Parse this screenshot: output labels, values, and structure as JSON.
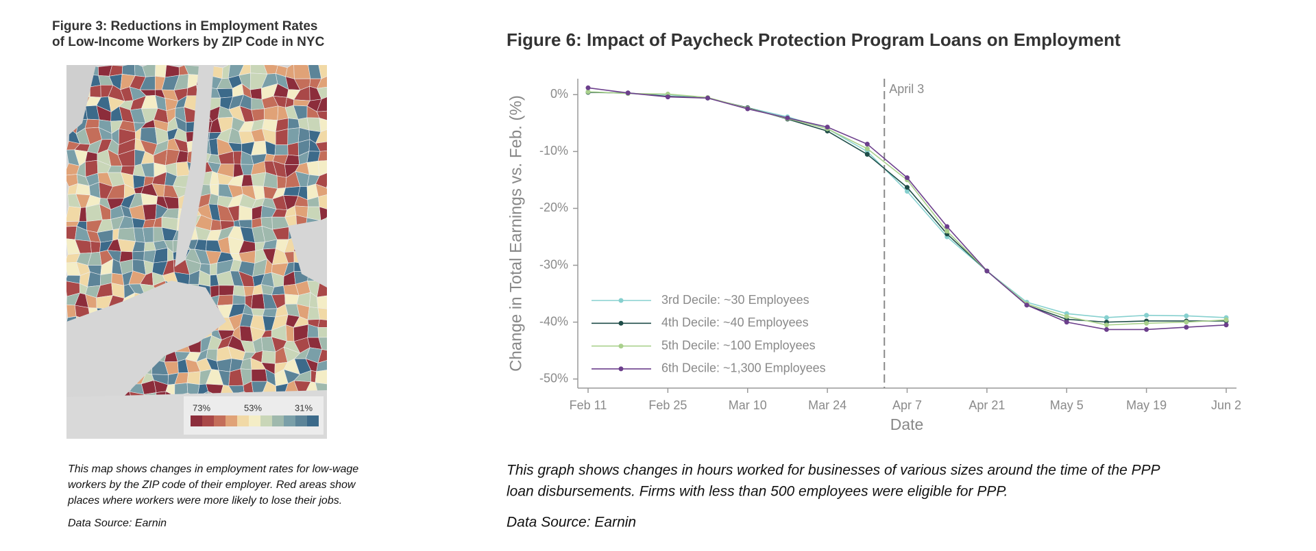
{
  "map_figure": {
    "title": [
      "Figure 3: Reductions in Employment Rates",
      "of Low-Income Workers by ZIP Code in NYC"
    ],
    "legend_labels": [
      "73%",
      "53%",
      "31%"
    ],
    "caption": [
      "This map shows changes in employment rates for low-wage",
      "workers by the ZIP code of their employer. Red areas show",
      "places where workers were more likely to lose their jobs."
    ],
    "source": "Data Source: Earnin"
  },
  "chart_data": {
    "type": "line",
    "title": "Figure 6: Impact of Paycheck Protection Program Loans on Employment",
    "x_label": "Date",
    "y_label": "Change in Total Earnings vs. Feb. (%)",
    "categories": [
      "Feb 11",
      null,
      "Feb 25",
      null,
      "Mar 10",
      null,
      "Mar 24",
      null,
      "Apr 7",
      null,
      "Apr 21",
      null,
      "May 5",
      null,
      "May 19",
      null,
      "Jun 2"
    ],
    "series": [
      {
        "name": "3rd Decile: ~30 Employees",
        "color": "#86d0cf",
        "values": [
          0.5,
          0.2,
          0.0,
          -0.6,
          -2.3,
          -3.9,
          -6.0,
          -10.0,
          -17.0,
          -25.0,
          -31.0,
          -36.5,
          -38.5,
          -39.2,
          -38.8,
          -38.9,
          -39.2
        ]
      },
      {
        "name": "4th Decile: ~40 Employees",
        "color": "#1f4d48",
        "values": [
          0.4,
          0.3,
          -0.3,
          -0.6,
          -2.3,
          -4.3,
          -6.4,
          -10.5,
          -16.3,
          -24.5,
          -31.0,
          -37.0,
          -39.5,
          -40.0,
          -39.8,
          -39.8,
          -39.8
        ]
      },
      {
        "name": "5th Decile: ~100 Employees",
        "color": "#a9d08c",
        "values": [
          0.5,
          0.2,
          0.1,
          -0.5,
          -2.4,
          -4.2,
          -6.0,
          -9.5,
          -15.0,
          -24.0,
          -31.0,
          -36.8,
          -39.0,
          -40.5,
          -40.2,
          -40.0,
          -39.6
        ]
      },
      {
        "name": "6th Decile: ~1,300 Employees",
        "color": "#6c3f8c",
        "values": [
          1.2,
          0.3,
          -0.4,
          -0.6,
          -2.5,
          -4.1,
          -5.7,
          -8.7,
          -14.6,
          -23.2,
          -31.0,
          -37.0,
          -40.0,
          -41.3,
          -41.3,
          -40.9,
          -40.5
        ]
      }
    ],
    "ylim": [
      -51.6,
      2.8
    ],
    "yticks": [
      {
        "value": 0,
        "label": "0%"
      },
      {
        "value": -10,
        "label": "-10%"
      },
      {
        "value": -20,
        "label": "-20%"
      },
      {
        "value": -30,
        "label": "-30%"
      },
      {
        "value": -40,
        "label": "-40%"
      },
      {
        "value": -50,
        "label": "-50%"
      }
    ],
    "annotation": {
      "text": "April 3"
    },
    "legend": "lower left",
    "grid": false,
    "caption": [
      "This graph shows changes in hours worked for businesses of various sizes around the time of the PPP",
      "loan disbursements. Firms with less than 500 employees were eligible for PPP."
    ],
    "source": "Data Source: Earnin"
  }
}
